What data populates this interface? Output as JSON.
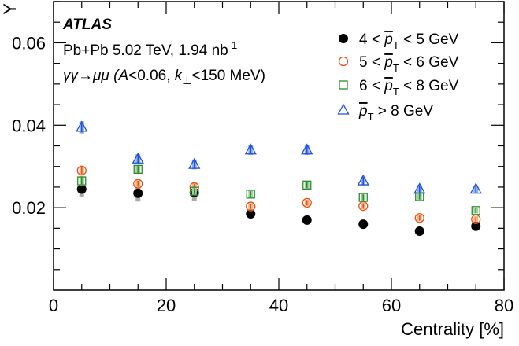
{
  "chart_data": {
    "type": "scatter",
    "xlabel": "Centrality [%]",
    "ylabel": "Y",
    "xlim": [
      0,
      80
    ],
    "ylim": [
      0,
      0.07
    ],
    "x_ticks": [
      "0",
      "20",
      "40",
      "60",
      "80"
    ],
    "y_ticks": [
      "0.02",
      "0.04",
      "0.06"
    ],
    "grid": false,
    "legend_position": "top-right",
    "annotations": {
      "experiment": "ATLAS",
      "dataset_prefix": "Pb+Pb 5.02 TeV, 1.94 nb",
      "dataset_exp": "-1",
      "process_prefix": "γγ→μμ (",
      "process_A": "A",
      "process_mid": "<0.06, ",
      "process_k": "k",
      "process_sub": "⊥",
      "process_suffix": "<150 MeV)"
    },
    "series": [
      {
        "label_pre": "4 < ",
        "label_p": "p",
        "label_sub": "T",
        "label_post": " < 5 GeV",
        "marker": "filled-circle",
        "color": "#000000",
        "sys_color": "#aaaaaa",
        "x": [
          5,
          15,
          25,
          35,
          45,
          55,
          65,
          75
        ],
        "y": [
          0.0245,
          0.0235,
          0.0237,
          0.0185,
          0.017,
          0.016,
          0.0143,
          0.0155
        ],
        "stat_err": [
          0.001,
          0.0008,
          0.0008,
          0.0007,
          0.0007,
          0.0006,
          0.0006,
          0.0007
        ],
        "sys_err": [
          0.002,
          0.002,
          0.002,
          0.001,
          0.0009,
          0.0008,
          0.0007,
          0.0008
        ]
      },
      {
        "label_pre": "5 < ",
        "label_p": "p",
        "label_sub": "T",
        "label_post": " < 6 GeV",
        "marker": "open-circle",
        "color": "#e8511a",
        "sys_color": "#f5b37e",
        "x": [
          5,
          15,
          25,
          35,
          45,
          55,
          65,
          75
        ],
        "y": [
          0.029,
          0.0258,
          0.025,
          0.0203,
          0.0212,
          0.0204,
          0.0175,
          0.0172
        ],
        "stat_err": [
          0.0008,
          0.0007,
          0.0007,
          0.0006,
          0.0006,
          0.0006,
          0.0006,
          0.0006
        ],
        "sys_err": [
          0.0012,
          0.001,
          0.001,
          0.0008,
          0.0008,
          0.0008,
          0.0007,
          0.0007
        ]
      },
      {
        "label_pre": "6 < ",
        "label_p": "p",
        "label_sub": "T",
        "label_post": " < 8 GeV",
        "marker": "open-square",
        "color": "#2a8c2a",
        "sys_color": "#9fd09f",
        "x": [
          5,
          15,
          25,
          35,
          45,
          55,
          65,
          75
        ],
        "y": [
          0.0265,
          0.0293,
          0.024,
          0.0233,
          0.0255,
          0.0225,
          0.0227,
          0.0193
        ],
        "stat_err": [
          0.0008,
          0.0008,
          0.0007,
          0.0007,
          0.0007,
          0.0007,
          0.0007,
          0.0006
        ],
        "sys_err": [
          0.0012,
          0.001,
          0.001,
          0.0009,
          0.0009,
          0.0008,
          0.0008,
          0.0007
        ]
      },
      {
        "label_pre": "",
        "label_p": "p",
        "label_sub": "T",
        "label_post": " > 8 GeV",
        "marker": "open-triangle",
        "color": "#1f4fd6",
        "sys_color": "#8fb0ee",
        "x": [
          5,
          15,
          25,
          35,
          45,
          55,
          65,
          75
        ],
        "y": [
          0.0395,
          0.0318,
          0.0305,
          0.034,
          0.034,
          0.0265,
          0.0245,
          0.0245
        ],
        "stat_err": [
          0.0012,
          0.001,
          0.001,
          0.001,
          0.001,
          0.0009,
          0.0009,
          0.0008
        ],
        "sys_err": [
          0.0015,
          0.0012,
          0.0012,
          0.0012,
          0.0012,
          0.001,
          0.001,
          0.0009
        ]
      }
    ]
  }
}
